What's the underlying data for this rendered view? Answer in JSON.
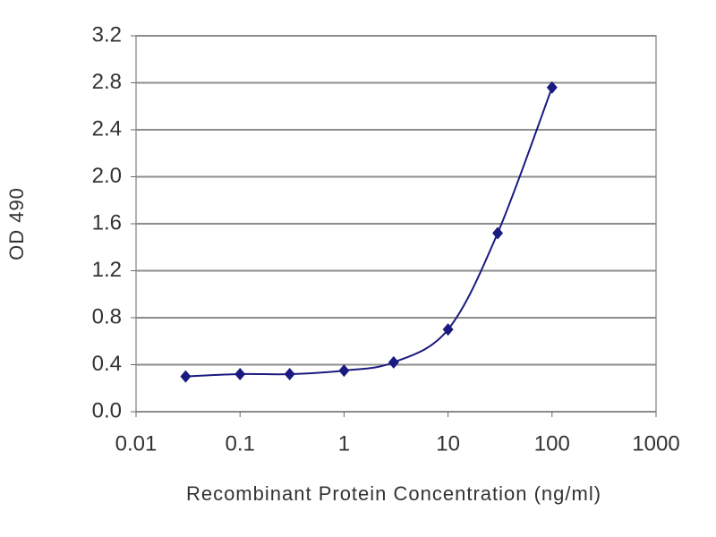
{
  "chart_data": {
    "type": "line",
    "x_label": "Recombinant Protein Concentration (ng/ml)",
    "y_label": "OD 490",
    "x_scale": "log",
    "grid": true,
    "xlim": [
      0.01,
      1000
    ],
    "xticks": [
      0.01,
      0.1,
      1,
      10,
      100,
      1000
    ],
    "ylim": [
      0,
      3.2
    ],
    "yticks": [
      {
        "value": 0,
        "label": "0.0"
      },
      0.4,
      0.8,
      1.2,
      1.6,
      {
        "value": 2,
        "label": "2.0"
      },
      2.4,
      2.8,
      3.2
    ],
    "x": [
      0.03,
      0.1,
      0.3,
      1,
      3,
      10,
      30,
      100
    ],
    "series": [
      {
        "color": "#1a1a80",
        "values": [
          0.3,
          0.32,
          0.32,
          0.35,
          0.42,
          0.7,
          1.52,
          2.76
        ]
      }
    ]
  }
}
